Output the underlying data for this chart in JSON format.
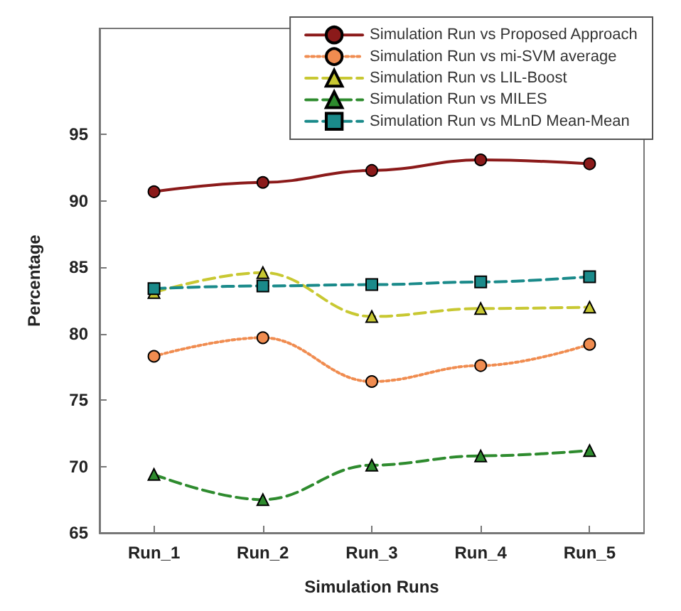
{
  "chart_data": {
    "type": "line",
    "xlabel": "Simulation Runs",
    "ylabel": "Percentage",
    "categories": [
      "Run_1",
      "Run_2",
      "Run_3",
      "Run_4",
      "Run_5"
    ],
    "series": [
      {
        "name": "Simulation Run vs Proposed Approach",
        "color": "#8b1a1a",
        "marker": "circle",
        "line_style": "solid",
        "values": [
          90.7,
          91.4,
          92.3,
          93.1,
          92.8
        ]
      },
      {
        "name": "Simulation Run vs mi-SVM average",
        "color": "#f08c50",
        "marker": "circle",
        "line_style": "dotted",
        "values": [
          78.3,
          79.7,
          76.4,
          77.6,
          79.2
        ]
      },
      {
        "name": "Simulation Run vs LIL-Boost",
        "color": "#c8c832",
        "marker": "triangle",
        "line_style": "dashed",
        "values": [
          83.1,
          84.6,
          81.3,
          81.9,
          82.0
        ]
      },
      {
        "name": "Simulation Run vs MILES",
        "color": "#2e8b2e",
        "marker": "triangle",
        "line_style": "dashed",
        "values": [
          69.4,
          67.5,
          70.1,
          70.8,
          71.2
        ]
      },
      {
        "name": "Simulation Run vs MLnD Mean-Mean",
        "color": "#1a8a8a",
        "marker": "square",
        "line_style": "dashed",
        "values": [
          83.4,
          83.6,
          83.7,
          83.9,
          84.3
        ]
      }
    ],
    "ylim": [
      65,
      103
    ],
    "yticks": [
      65,
      70,
      75,
      80,
      85,
      90,
      95
    ],
    "grid": false,
    "legend": "top right"
  }
}
